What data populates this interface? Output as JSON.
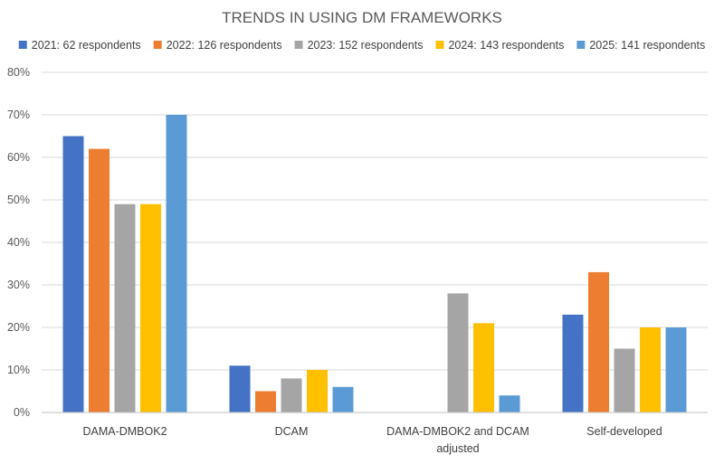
{
  "chart_data": {
    "type": "bar",
    "title": "TRENDS IN USING DM FRAMEWORKS",
    "xlabel": "",
    "ylabel": "",
    "ylim": [
      0,
      80
    ],
    "y_unit": "%",
    "y_ticks": [
      "0%",
      "10%",
      "20%",
      "30%",
      "40%",
      "50%",
      "60%",
      "70%",
      "80%"
    ],
    "y_tick_values": [
      0,
      10,
      20,
      30,
      40,
      50,
      60,
      70,
      80
    ],
    "grid": true,
    "legend_position": "top",
    "categories": [
      [
        "DAMA-DMBOK2"
      ],
      [
        "DCAM"
      ],
      [
        "DAMA-DMBOK2 and DCAM",
        "adjusted"
      ],
      [
        "Self-developed"
      ]
    ],
    "series": [
      {
        "name": "2021: 62 respondents",
        "color": "#4472c4",
        "values": [
          65,
          11,
          0,
          23
        ]
      },
      {
        "name": "2022: 126 respondents",
        "color": "#ed7d31",
        "values": [
          62,
          5,
          0,
          33
        ]
      },
      {
        "name": "2023: 152 respondents",
        "color": "#a5a5a5",
        "values": [
          49,
          8,
          28,
          15
        ]
      },
      {
        "name": "2024: 143 respondents",
        "color": "#ffc000",
        "values": [
          49,
          10,
          21,
          20
        ]
      },
      {
        "name": "2025: 141 respondents",
        "color": "#5b9bd5",
        "values": [
          70,
          6,
          4,
          20
        ]
      }
    ]
  }
}
